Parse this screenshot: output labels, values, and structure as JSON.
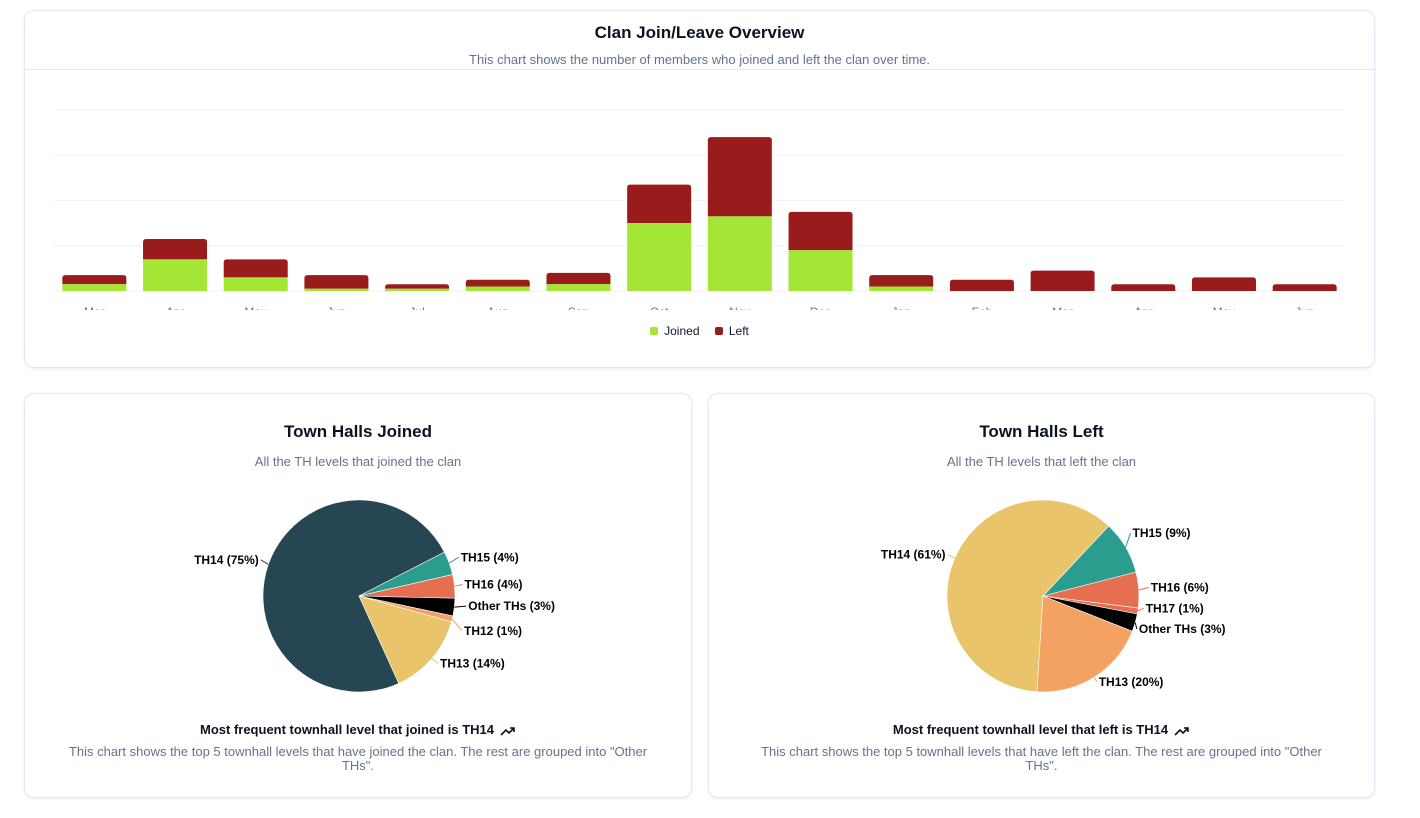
{
  "colors": {
    "joined": "#a3e635",
    "left": "#991b1b",
    "th14": "#264653",
    "th15": "#2a9d8f",
    "th16": "#e76f51",
    "th13_joined": "#e9c46a",
    "other": "#000000",
    "th12": "#f4a261",
    "th14_left": "#e9c46a",
    "th13_left": "#f4a261",
    "th17": "#e76f51"
  },
  "overview": {
    "title": "Clan Join/Leave Overview",
    "subtitle": "This chart shows the number of members who joined and left the clan over time.",
    "legend_joined": "Joined",
    "legend_left": "Left"
  },
  "joined_card": {
    "title": "Town Halls Joined",
    "subtitle": "All the TH levels that joined the clan",
    "footer_title": "Most frequent townhall level that joined is TH14",
    "footer_desc": "This chart shows the top 5 townhall levels that have joined the clan. The rest are grouped into \"Other THs\"."
  },
  "left_card": {
    "title": "Town Halls Left",
    "subtitle": "All the TH levels that left the clan",
    "footer_title": "Most frequent townhall level that left is TH14",
    "footer_desc": "This chart shows the top 5 townhall levels that have left the clan. The rest are grouped into \"Other THs\"."
  },
  "chart_data": [
    {
      "type": "bar",
      "stacked": true,
      "title": "Clan Join/Leave Overview",
      "categories": [
        "Mar",
        "Apr",
        "May",
        "Jun",
        "Jul",
        "Aug",
        "Sep",
        "Oct",
        "Nov",
        "Dec",
        "Jan",
        "Feb",
        "Mar",
        "Apr",
        "May",
        "Jun"
      ],
      "series": [
        {
          "name": "Joined",
          "values": [
            3,
            14,
            6,
            1,
            1,
            2,
            3,
            30,
            33,
            18,
            2,
            0,
            0,
            0,
            0,
            0
          ]
        },
        {
          "name": "Left",
          "values": [
            4,
            9,
            8,
            6,
            2,
            3,
            5,
            17,
            35,
            17,
            5,
            5,
            9,
            3,
            6,
            3
          ]
        }
      ],
      "ylim": [
        0,
        80
      ],
      "grid": true,
      "legend": "bottom-center"
    },
    {
      "type": "pie",
      "title": "Town Halls Joined",
      "slices": [
        {
          "label": "TH14 (75%)",
          "value": 75
        },
        {
          "label": "TH15 (4%)",
          "value": 4
        },
        {
          "label": "TH16 (4%)",
          "value": 4
        },
        {
          "label": "Other THs (3%)",
          "value": 3
        },
        {
          "label": "TH12 (1%)",
          "value": 1
        },
        {
          "label": "TH13 (14%)",
          "value": 14
        }
      ]
    },
    {
      "type": "pie",
      "title": "Town Halls Left",
      "slices": [
        {
          "label": "TH14 (61%)",
          "value": 61
        },
        {
          "label": "TH15 (9%)",
          "value": 9
        },
        {
          "label": "TH16 (6%)",
          "value": 6
        },
        {
          "label": "TH17 (1%)",
          "value": 1
        },
        {
          "label": "Other THs (3%)",
          "value": 3
        },
        {
          "label": "TH13 (20%)",
          "value": 20
        }
      ]
    }
  ]
}
